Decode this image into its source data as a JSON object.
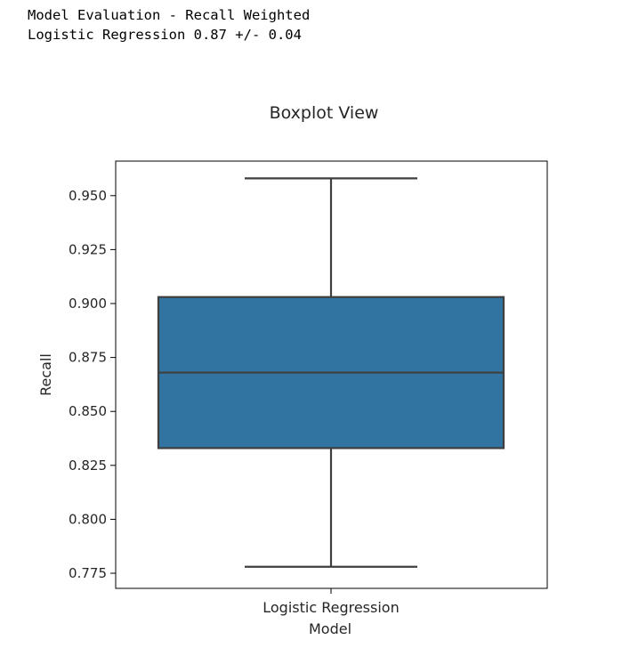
{
  "output": {
    "lines": [
      "Model Evaluation - Recall Weighted",
      "Logistic Regression 0.87 +/- 0.04"
    ]
  },
  "chart_data": {
    "type": "box",
    "title": "Boxplot View",
    "xlabel": "Model",
    "ylabel": "Recall",
    "categories": [
      "Logistic Regression"
    ],
    "boxes": [
      {
        "category": "Logistic Regression",
        "whisker_low": 0.778,
        "q1": 0.833,
        "median": 0.868,
        "q3": 0.903,
        "whisker_high": 0.958
      }
    ],
    "ylim": [
      0.768,
      0.966
    ],
    "yticks": [
      0.775,
      0.8,
      0.825,
      0.85,
      0.875,
      0.9,
      0.925,
      0.95
    ],
    "ytick_labels": [
      "0.775",
      "0.800",
      "0.825",
      "0.850",
      "0.875",
      "0.900",
      "0.925",
      "0.950"
    ],
    "box_color": "#3274a1",
    "line_color": "#3f3f3f",
    "grid": false,
    "legend": "none"
  }
}
